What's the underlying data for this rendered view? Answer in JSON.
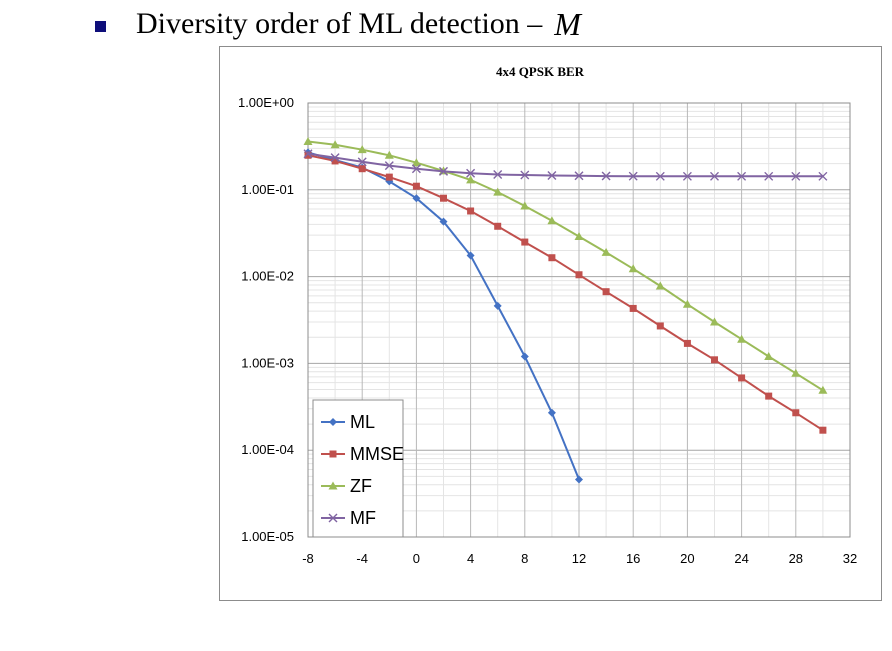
{
  "slide": {
    "heading": "Diversity order of ML detection –",
    "heading_symbol": "M"
  },
  "chart_data": {
    "type": "line",
    "title": "4x4 QPSK BER",
    "xlabel": "",
    "ylabel": "",
    "x_ticks": [
      -8,
      -4,
      0,
      4,
      8,
      12,
      16,
      20,
      24,
      28,
      32
    ],
    "xlim": [
      -8,
      32
    ],
    "y_scale": "log",
    "ylim": [
      1e-05,
      1
    ],
    "y_tick_values": [
      1e-05,
      0.0001,
      0.001,
      0.01,
      0.1,
      1
    ],
    "y_tick_labels": [
      "1.00E-05",
      "1.00E-04",
      "1.00E-03",
      "1.00E-02",
      "1.00E-01",
      "1.00E+00"
    ],
    "grid": true,
    "legend_position": "bottom-left",
    "series": [
      {
        "name": "ML",
        "color": "#4472c4",
        "marker": "diamond",
        "x": [
          -8,
          -6,
          -4,
          -2,
          0,
          2,
          4,
          6,
          8,
          10,
          12
        ],
        "y": [
          0.27,
          0.22,
          0.18,
          0.125,
          0.08,
          0.043,
          0.0175,
          0.0046,
          0.0012,
          0.00027,
          4.6e-05
        ]
      },
      {
        "name": "MMSE",
        "color": "#c0504d",
        "marker": "square",
        "x": [
          -8,
          -6,
          -4,
          -2,
          0,
          2,
          4,
          6,
          8,
          10,
          12,
          14,
          16,
          18,
          20,
          22,
          24,
          26,
          28,
          30
        ],
        "y": [
          0.25,
          0.215,
          0.175,
          0.14,
          0.11,
          0.08,
          0.057,
          0.038,
          0.025,
          0.0165,
          0.0105,
          0.0067,
          0.0043,
          0.0027,
          0.0017,
          0.0011,
          0.00068,
          0.00042,
          0.00027,
          0.00017
        ]
      },
      {
        "name": "ZF",
        "color": "#9bbb59",
        "marker": "triangle",
        "x": [
          -8,
          -6,
          -4,
          -2,
          0,
          2,
          4,
          6,
          8,
          10,
          12,
          14,
          16,
          18,
          20,
          22,
          24,
          26,
          28,
          30
        ],
        "y": [
          0.36,
          0.33,
          0.29,
          0.25,
          0.205,
          0.165,
          0.13,
          0.094,
          0.065,
          0.044,
          0.029,
          0.019,
          0.0123,
          0.0078,
          0.0048,
          0.003,
          0.0019,
          0.0012,
          0.00077,
          0.00049
        ]
      },
      {
        "name": "MF",
        "color": "#8064a2",
        "marker": "x",
        "x": [
          -8,
          -6,
          -4,
          -2,
          0,
          2,
          4,
          6,
          8,
          10,
          12,
          14,
          16,
          18,
          20,
          22,
          24,
          26,
          28,
          30
        ],
        "y": [
          0.26,
          0.235,
          0.21,
          0.19,
          0.175,
          0.163,
          0.155,
          0.15,
          0.148,
          0.146,
          0.145,
          0.144,
          0.1435,
          0.143,
          0.143,
          0.143,
          0.143,
          0.143,
          0.143,
          0.143
        ]
      }
    ]
  }
}
